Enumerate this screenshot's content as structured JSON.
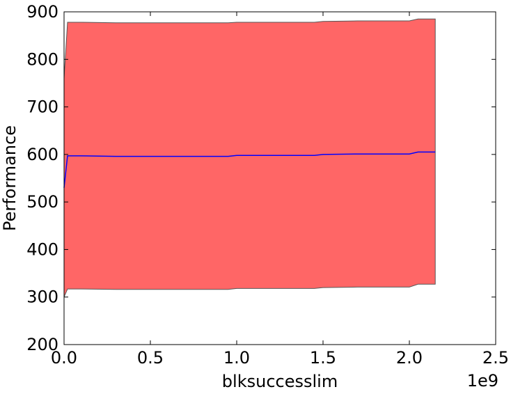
{
  "chart_data": {
    "type": "area",
    "title": "",
    "xlabel": "blksuccesslim",
    "ylabel": "Performance",
    "x_offset_label": "1e9",
    "xlim": [
      0.0,
      2.5
    ],
    "ylim": [
      200,
      900
    ],
    "x_ticks": [
      0.0,
      0.5,
      1.0,
      1.5,
      2.0,
      2.5
    ],
    "x_tick_labels": [
      "0.0",
      "0.5",
      "1.0",
      "1.5",
      "2.0",
      "2.5"
    ],
    "y_ticks": [
      200,
      300,
      400,
      500,
      600,
      700,
      800,
      900
    ],
    "y_tick_labels": [
      "200",
      "300",
      "400",
      "500",
      "600",
      "700",
      "800",
      "900"
    ],
    "x_scale_note": "x values in units of 1e9",
    "grid": false,
    "colors": {
      "band_fill": "#ff6666",
      "band_edge": "#555555",
      "mean_line": "#0000ff"
    },
    "x": [
      0.0,
      0.02,
      0.1,
      0.3,
      0.6,
      0.95,
      1.0,
      1.3,
      1.45,
      1.5,
      1.7,
      2.0,
      2.05,
      2.15
    ],
    "mean": [
      530,
      597,
      597,
      596,
      596,
      596,
      598,
      598,
      598,
      600,
      601,
      601,
      605,
      605
    ],
    "upper": [
      760,
      878,
      878,
      877,
      877,
      877,
      878,
      878,
      878,
      880,
      881,
      881,
      885,
      885
    ],
    "lower": [
      300,
      317,
      317,
      316,
      316,
      316,
      318,
      318,
      318,
      320,
      321,
      321,
      327,
      327
    ]
  }
}
